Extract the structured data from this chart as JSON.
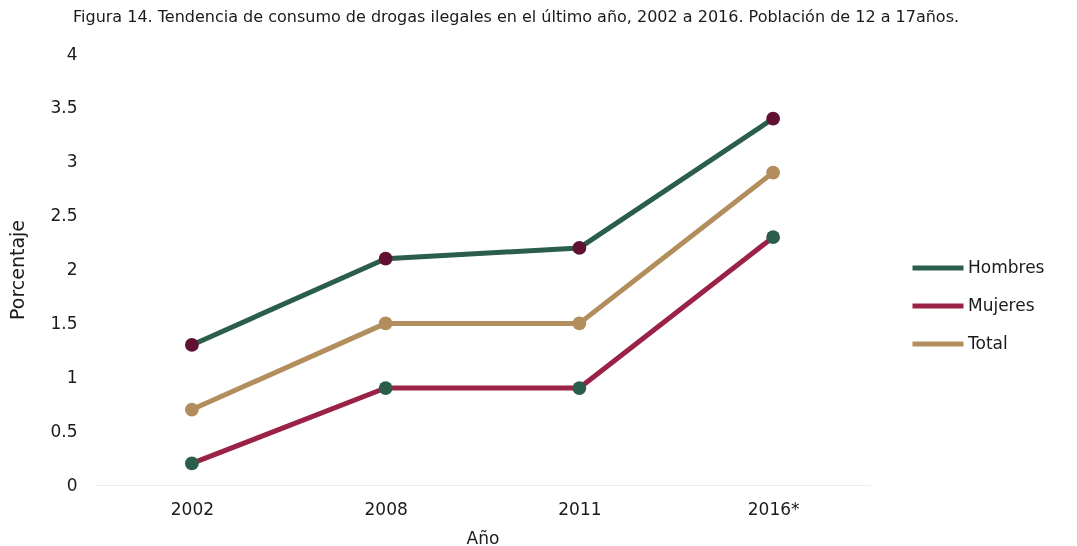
{
  "chart_data": {
    "type": "line",
    "title": "Figura 14.  Tendencia de consumo de drogas ilegales en el último año, 2002 a 2016. Población de 12 a 17años.",
    "xlabel": "Año",
    "ylabel": "Porcentaje",
    "categories": [
      "2002",
      "2008",
      "2011",
      "2016*"
    ],
    "series": [
      {
        "name": "Hombres",
        "color": "#2a5e4a",
        "colors": [
          "#611232",
          "#611232",
          "#611232",
          "#611232"
        ],
        "values": [
          1.3,
          2.1,
          2.2,
          3.4
        ]
      },
      {
        "name": "Mujeres",
        "color": "#9b2247",
        "colors": [
          "#2a5e4a",
          "#2a5e4a",
          "#2a5e4a",
          "#2a5e4a"
        ],
        "values": [
          0.2,
          0.9,
          0.9,
          2.3
        ]
      },
      {
        "name": "Total",
        "color": "#b38e5d",
        "colors": [
          "#b38e5d",
          "#b38e5d",
          "#b38e5d",
          "#b38e5d"
        ],
        "values": [
          0.7,
          1.5,
          1.5,
          2.9
        ]
      }
    ],
    "ylim": [
      0,
      4
    ],
    "yticks": [
      0,
      0.5,
      1,
      1.5,
      2,
      2.5,
      3,
      3.5,
      4
    ],
    "grid": false,
    "legend": "right",
    "marker": "circle",
    "line_style": "solid"
  }
}
